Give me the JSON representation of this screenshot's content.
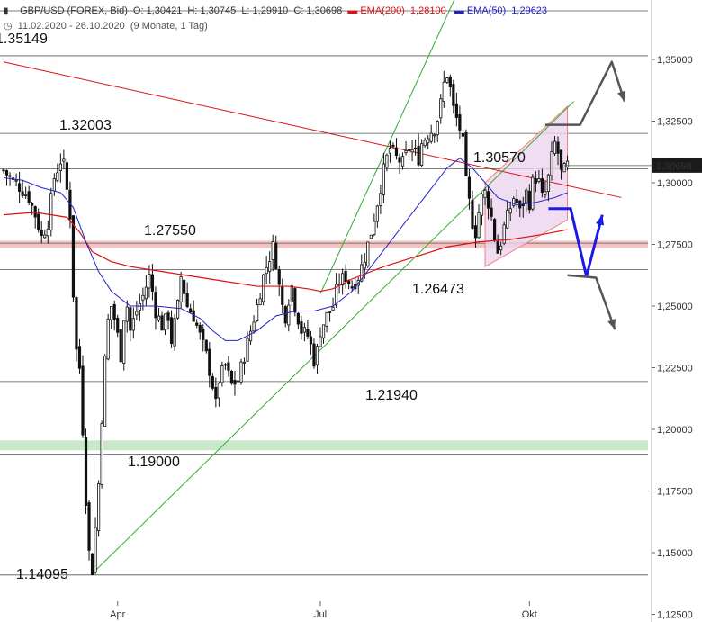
{
  "header": {
    "symbol": "GBP/USD (FOREX, Bid)",
    "open": "O: 1,30421",
    "high": "H: 1,30745",
    "low": "L: 1,29910",
    "close": "C: 1,30698",
    "ema200_label": "EMA(200)",
    "ema200_value": "1,28100",
    "ema50_label": "EMA(50)",
    "ema50_value": "1,29623",
    "date_range": "11.02.2020 - 26.10.2020",
    "period": "(9 Monate, 1 Tag)"
  },
  "colors": {
    "candle": "#111111",
    "ema200": "#dd1111",
    "ema50": "#2222cc",
    "trend_green": "#33aa33",
    "resistance_band": "#f4c4c4",
    "support_band": "#c8e8c8",
    "channel_fill": "#ecd4ee",
    "channel_edge": "#f08080",
    "arrow_blue": "#1a1ae6",
    "arrow_gray": "#555555",
    "price_tag": "#1a1a1a"
  },
  "chart_data": {
    "type": "candlestick",
    "instrument": "GBP/USD",
    "ylim": [
      1.125,
      1.36
    ],
    "x_ticks": [
      {
        "label": "Apr",
        "index": 36
      },
      {
        "label": "Jul",
        "index": 100
      },
      {
        "label": "Okt",
        "index": 166
      }
    ],
    "y_ticks": [
      "1,12500",
      "1,15000",
      "1,17500",
      "1,20000",
      "1,22500",
      "1,25000",
      "1,27500",
      "1,30000",
      "1,32500",
      "1,35000"
    ],
    "y_tick_values": [
      1.125,
      1.15,
      1.175,
      1.2,
      1.225,
      1.25,
      1.275,
      1.3,
      1.325,
      1.35
    ],
    "last_price": {
      "label": "1,30698",
      "value": 1.30698
    },
    "levels": [
      {
        "label": "1.35149",
        "value": 1.35149
      },
      {
        "label": "1.32003",
        "value": 1.32003
      },
      {
        "label": "1.30570",
        "value": 1.3057
      },
      {
        "label": "1.27550",
        "value": 1.2755
      },
      {
        "label": "1.26473",
        "value": 1.26473
      },
      {
        "label": "1.21940",
        "value": 1.2194
      },
      {
        "label": "1.19000",
        "value": 1.19
      },
      {
        "label": "1.14095",
        "value": 1.14095
      }
    ],
    "resistance_zone": [
      1.2735,
      1.2765
    ],
    "support_zone": [
      1.1915,
      1.1955
    ],
    "close_path": [
      [
        0,
        1.305
      ],
      [
        2,
        1.302
      ],
      [
        4,
        1.3
      ],
      [
        6,
        1.297
      ],
      [
        8,
        1.294
      ],
      [
        10,
        1.287
      ],
      [
        12,
        1.278
      ],
      [
        14,
        1.284
      ],
      [
        16,
        1.302
      ],
      [
        18,
        1.309
      ],
      [
        19,
        1.307
      ],
      [
        20,
        1.297
      ],
      [
        21,
        1.287
      ],
      [
        22,
        1.255
      ],
      [
        23,
        1.232
      ],
      [
        24,
        1.225
      ],
      [
        25,
        1.2
      ],
      [
        26,
        1.172
      ],
      [
        27,
        1.15
      ],
      [
        28,
        1.143
      ],
      [
        29,
        1.16
      ],
      [
        30,
        1.178
      ],
      [
        31,
        1.205
      ],
      [
        32,
        1.228
      ],
      [
        33,
        1.244
      ],
      [
        34,
        1.25
      ],
      [
        35,
        1.245
      ],
      [
        36,
        1.238
      ],
      [
        37,
        1.23
      ],
      [
        38,
        1.246
      ],
      [
        39,
        1.25
      ],
      [
        40,
        1.24
      ],
      [
        42,
        1.248
      ],
      [
        44,
        1.254
      ],
      [
        45,
        1.258
      ],
      [
        46,
        1.262
      ],
      [
        47,
        1.256
      ],
      [
        48,
        1.248
      ],
      [
        50,
        1.242
      ],
      [
        52,
        1.246
      ],
      [
        53,
        1.236
      ],
      [
        55,
        1.25
      ],
      [
        56,
        1.262
      ],
      [
        57,
        1.256
      ],
      [
        58,
        1.25
      ],
      [
        60,
        1.246
      ],
      [
        62,
        1.238
      ],
      [
        64,
        1.23
      ],
      [
        65,
        1.224
      ],
      [
        66,
        1.218
      ],
      [
        67,
        1.21
      ],
      [
        68,
        1.22
      ],
      [
        70,
        1.226
      ],
      [
        72,
        1.218
      ],
      [
        74,
        1.22
      ],
      [
        76,
        1.23
      ],
      [
        78,
        1.24
      ],
      [
        80,
        1.25
      ],
      [
        82,
        1.262
      ],
      [
        84,
        1.27
      ],
      [
        85,
        1.274
      ],
      [
        86,
        1.268
      ],
      [
        87,
        1.258
      ],
      [
        88,
        1.25
      ],
      [
        89,
        1.246
      ],
      [
        90,
        1.253
      ],
      [
        91,
        1.258
      ],
      [
        92,
        1.25
      ],
      [
        94,
        1.24
      ],
      [
        96,
        1.238
      ],
      [
        97,
        1.234
      ],
      [
        98,
        1.228
      ],
      [
        99,
        1.232
      ],
      [
        100,
        1.24
      ],
      [
        102,
        1.246
      ],
      [
        104,
        1.25
      ],
      [
        105,
        1.256
      ],
      [
        106,
        1.26
      ],
      [
        108,
        1.262
      ],
      [
        110,
        1.258
      ],
      [
        112,
        1.262
      ],
      [
        114,
        1.27
      ],
      [
        116,
        1.28
      ],
      [
        118,
        1.292
      ],
      [
        120,
        1.305
      ],
      [
        121,
        1.31
      ],
      [
        122,
        1.314
      ],
      [
        124,
        1.31
      ],
      [
        126,
        1.308
      ],
      [
        128,
        1.314
      ],
      [
        130,
        1.312
      ],
      [
        131,
        1.31
      ],
      [
        132,
        1.316
      ],
      [
        134,
        1.32
      ],
      [
        136,
        1.322
      ],
      [
        137,
        1.326
      ],
      [
        138,
        1.332
      ],
      [
        139,
        1.34
      ],
      [
        140,
        1.344
      ],
      [
        141,
        1.338
      ],
      [
        142,
        1.33
      ],
      [
        144,
        1.322
      ],
      [
        145,
        1.316
      ],
      [
        146,
        1.3
      ],
      [
        147,
        1.292
      ],
      [
        148,
        1.284
      ],
      [
        149,
        1.28
      ],
      [
        150,
        1.288
      ],
      [
        151,
        1.294
      ],
      [
        152,
        1.296
      ],
      [
        153,
        1.292
      ],
      [
        154,
        1.286
      ],
      [
        155,
        1.278
      ],
      [
        156,
        1.272
      ],
      [
        157,
        1.276
      ],
      [
        158,
        1.282
      ],
      [
        159,
        1.286
      ],
      [
        160,
        1.29
      ],
      [
        161,
        1.294
      ],
      [
        162,
        1.292
      ],
      [
        163,
        1.288
      ],
      [
        164,
        1.292
      ],
      [
        165,
        1.296
      ],
      [
        166,
        1.292
      ],
      [
        167,
        1.3
      ],
      [
        168,
        1.302
      ],
      [
        169,
        1.3
      ],
      [
        170,
        1.294
      ],
      [
        171,
        1.296
      ],
      [
        172,
        1.302
      ],
      [
        173,
        1.31
      ],
      [
        174,
        1.316
      ],
      [
        175,
        1.312
      ],
      [
        176,
        1.304
      ],
      [
        177,
        1.305
      ],
      [
        178,
        1.307
      ]
    ],
    "candle_count": 179,
    "ema200_path": [
      [
        0,
        1.287
      ],
      [
        10,
        1.288
      ],
      [
        20,
        1.286
      ],
      [
        24,
        1.28
      ],
      [
        28,
        1.272
      ],
      [
        34,
        1.268
      ],
      [
        40,
        1.266
      ],
      [
        50,
        1.264
      ],
      [
        60,
        1.262
      ],
      [
        70,
        1.26
      ],
      [
        80,
        1.258
      ],
      [
        90,
        1.258
      ],
      [
        96,
        1.257
      ],
      [
        100,
        1.256
      ],
      [
        104,
        1.257
      ],
      [
        110,
        1.261
      ],
      [
        120,
        1.266
      ],
      [
        130,
        1.27
      ],
      [
        140,
        1.274
      ],
      [
        150,
        1.276
      ],
      [
        160,
        1.277
      ],
      [
        170,
        1.279
      ],
      [
        178,
        1.281
      ]
    ],
    "ema50_path": [
      [
        0,
        1.302
      ],
      [
        6,
        1.301
      ],
      [
        12,
        1.298
      ],
      [
        18,
        1.296
      ],
      [
        22,
        1.29
      ],
      [
        26,
        1.276
      ],
      [
        30,
        1.264
      ],
      [
        34,
        1.256
      ],
      [
        40,
        1.25
      ],
      [
        48,
        1.25
      ],
      [
        56,
        1.249
      ],
      [
        62,
        1.245
      ],
      [
        66,
        1.24
      ],
      [
        70,
        1.236
      ],
      [
        74,
        1.236
      ],
      [
        80,
        1.24
      ],
      [
        86,
        1.246
      ],
      [
        92,
        1.248
      ],
      [
        98,
        1.248
      ],
      [
        104,
        1.25
      ],
      [
        110,
        1.256
      ],
      [
        116,
        1.266
      ],
      [
        122,
        1.276
      ],
      [
        128,
        1.286
      ],
      [
        134,
        1.296
      ],
      [
        140,
        1.306
      ],
      [
        144,
        1.31
      ],
      [
        148,
        1.306
      ],
      [
        152,
        1.3
      ],
      [
        156,
        1.294
      ],
      [
        162,
        1.291
      ],
      [
        168,
        1.292
      ],
      [
        174,
        1.294
      ],
      [
        178,
        1.296
      ]
    ],
    "trendlines": [
      {
        "name": "red-downtrend",
        "p1": [
          0,
          1.349
        ],
        "p2": [
          195,
          1.294
        ]
      },
      {
        "name": "green-uptrend-lower",
        "p1": [
          28,
          1.1415
        ],
        "p2": [
          180,
          1.333
        ]
      },
      {
        "name": "green-uptrend-upper",
        "p1": [
          100,
          1.255
        ],
        "p2": [
          150,
          1.396
        ]
      }
    ],
    "channel": [
      [
        152,
        1.266
      ],
      [
        178,
        1.285
      ],
      [
        178,
        1.331
      ],
      [
        152,
        1.3
      ]
    ],
    "projection_blue": [
      [
        172,
        1.2895
      ],
      [
        179,
        1.2895
      ],
      [
        184,
        1.262
      ],
      [
        189,
        1.287
      ]
    ],
    "projection_gray_up": [
      [
        171,
        1.3235
      ],
      [
        182,
        1.3235
      ],
      [
        192,
        1.349
      ],
      [
        196,
        1.333
      ]
    ],
    "projection_gray_down": [
      [
        178,
        1.2625
      ],
      [
        187,
        1.2615
      ],
      [
        193,
        1.2405
      ]
    ]
  }
}
